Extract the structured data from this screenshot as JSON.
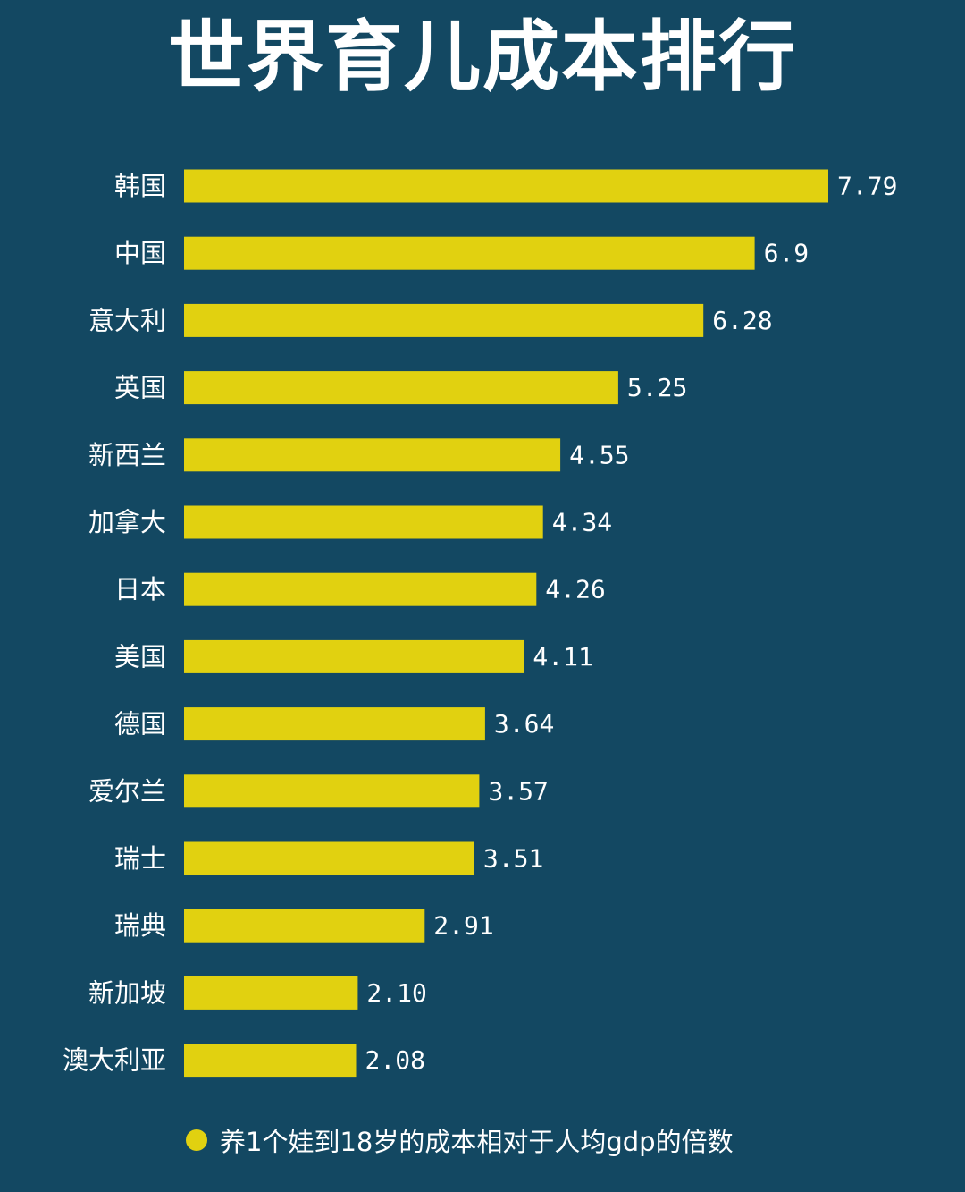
{
  "colors": {
    "background": "#134862",
    "bar": "#e1d110",
    "text": "#ffffff"
  },
  "chart_data": {
    "type": "bar",
    "orientation": "horizontal",
    "title": "世界育儿成本排行",
    "categories": [
      "韩国",
      "中国",
      "意大利",
      "英国",
      "新西兰",
      "加拿大",
      "日本",
      "美国",
      "德国",
      "爱尔兰",
      "瑞士",
      "瑞典",
      "新加坡",
      "澳大利亚"
    ],
    "values": [
      7.79,
      6.9,
      6.28,
      5.25,
      4.55,
      4.34,
      4.26,
      4.11,
      3.64,
      3.57,
      3.51,
      2.91,
      2.1,
      2.08
    ],
    "value_labels": [
      "7.79",
      "6.9",
      "6.28",
      "5.25",
      "4.55",
      "4.34",
      "4.26",
      "4.11",
      "3.64",
      "3.57",
      "3.51",
      "2.91",
      "2.10",
      "2.08"
    ],
    "xlabel": "",
    "ylabel": "",
    "xlim": [
      0,
      7.79
    ],
    "grid": false,
    "legend": {
      "position": "bottom",
      "label": "养1个娃到18岁的成本相对于人均gdp的倍数"
    }
  }
}
